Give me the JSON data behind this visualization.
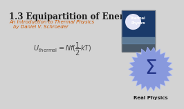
{
  "bg_color": "#d3d3d3",
  "title": "1.3 Equipartition of Energy",
  "title_color": "#1a1a1a",
  "title_fontsize": 8.5,
  "subtitle1": "An Introduction to Thermal Physics",
  "subtitle2": "by Daniel V. Schroeder",
  "subtitle_color": "#cc5500",
  "subtitle_fontsize": 5.0,
  "formula_color": "#444444",
  "formula_fontsize": 7.0,
  "badge_color": "#8899dd",
  "badge_inner_color": "#99aaee",
  "badge_edge_color": "#aabbff",
  "sigma_color": "#223388",
  "badge_label": "Real Physics",
  "badge_label_color": "#1a1a1a",
  "badge_label_fontsize": 5.0,
  "book_top_color": "#1a3a6a",
  "book_mid_color": "#4477aa",
  "book_bottom_color": "#556677",
  "book_text_color": "#ffffff"
}
